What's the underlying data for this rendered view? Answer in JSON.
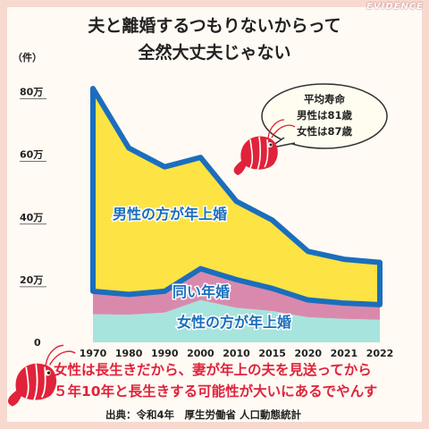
{
  "watermark": "EVIDENCE",
  "title_line1": "夫と離婚するつもりないからって",
  "title_line2": "全然大丈夫じゃない",
  "unit": "（件）",
  "bubble": {
    "line1": "平均寿命",
    "line2": "男性は81歳",
    "line3": "女性は87歳"
  },
  "note_line1": "女性は長生きだから、妻が年上の夫を見送ってから",
  "note_line2": "５年10年と長生きする可能性が大いにあるでやんす",
  "source": "出典：令和4年　厚生労働省 人口動態統計",
  "colors": {
    "older_husband": "#fde343",
    "same_age": "#d98aac",
    "older_wife": "#a7e4dd",
    "outline": "#1b6ebd",
    "accent": "#e0233a"
  },
  "chart_data": {
    "type": "area",
    "categories": [
      "1970",
      "1980",
      "1990",
      "2000",
      "2010",
      "2015",
      "2020",
      "2021",
      "2022"
    ],
    "yticks": [
      {
        "value": 0,
        "label": "0"
      },
      {
        "value": 200000,
        "label": "20万"
      },
      {
        "value": 400000,
        "label": "40万"
      },
      {
        "value": 600000,
        "label": "60万"
      },
      {
        "value": 800000,
        "label": "80万"
      }
    ],
    "ylim": [
      0,
      850000
    ],
    "ylabel": "（件）",
    "stacked": true,
    "series": [
      {
        "name": "女性の方が年上婚",
        "values": [
          90000,
          88000,
          95000,
          135000,
          110000,
          100000,
          80000,
          75000,
          72000
        ]
      },
      {
        "name": "同い年婚",
        "values": [
          73000,
          65000,
          68000,
          100000,
          90000,
          72000,
          55000,
          50000,
          48000
        ]
      },
      {
        "name": "男性の方が年上婚",
        "values": [
          647000,
          467000,
          397000,
          355000,
          250000,
          218000,
          155000,
          140000,
          135000
        ]
      }
    ]
  }
}
